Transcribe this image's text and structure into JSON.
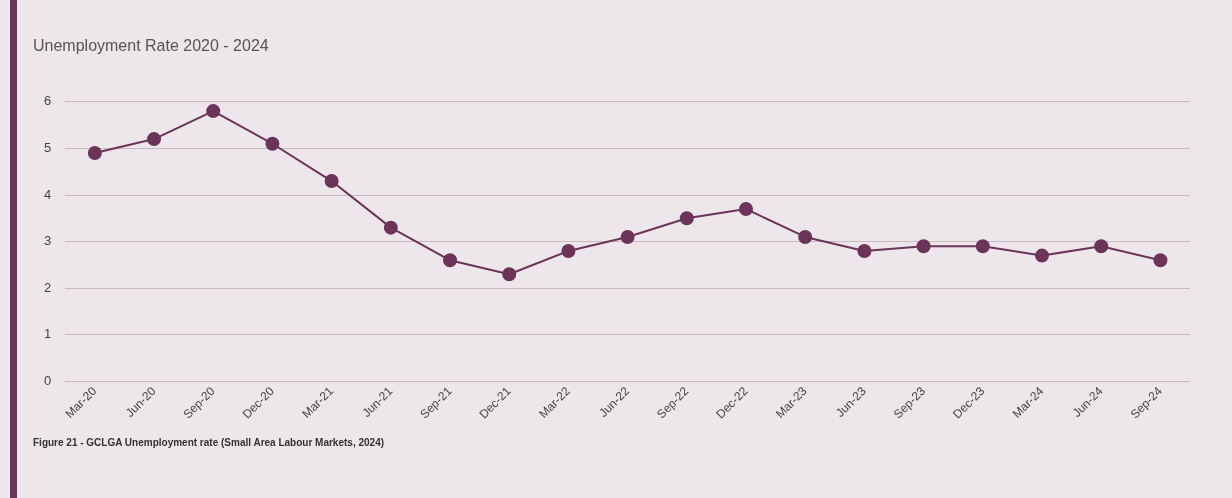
{
  "chart_data": {
    "type": "line",
    "title": "Unemployment Rate 2020 - 2024",
    "categories": [
      "Mar-20",
      "Jun-20",
      "Sep-20",
      "Dec-20",
      "Mar-21",
      "Jun-21",
      "Sep-21",
      "Dec-21",
      "Mar-22",
      "Jun-22",
      "Sep-22",
      "Dec-22",
      "Mar-23",
      "Jun-23",
      "Sep-23",
      "Dec-23",
      "Mar-24",
      "Jun-24",
      "Sep-24"
    ],
    "series": [
      {
        "color": "#6b3458",
        "values": [
          4.9,
          5.2,
          5.8,
          5.1,
          4.3,
          3.3,
          2.6,
          2.3,
          2.8,
          3.1,
          3.5,
          3.7,
          3.1,
          2.8,
          2.9,
          2.9,
          2.7,
          2.9,
          2.6
        ]
      }
    ],
    "ylim": [
      0,
      6
    ],
    "yticks": [
      0,
      1,
      2,
      3,
      4,
      5,
      6
    ],
    "grid": "y",
    "legend": false,
    "marker": "circle",
    "line_style": "solid",
    "annotations": [
      "Figure 21 - GCLGA Unemployment rate (Small Area Labour Markets, 2024)"
    ]
  }
}
